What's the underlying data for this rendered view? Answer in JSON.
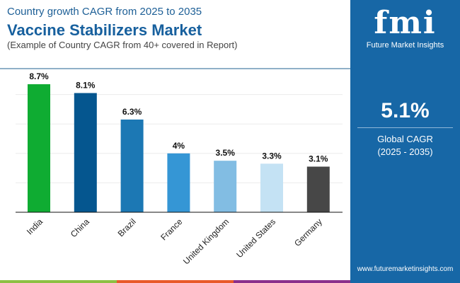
{
  "header": {
    "subtitle": "Country growth CAGR from 2025 to 2035",
    "title": "Vaccine Stabilizers Market",
    "note": "(Example of Country CAGR from 40+ covered in Report)"
  },
  "panel": {
    "brand": "fmi",
    "brand_name": "Future Market Insights",
    "cagr_value": "5.1%",
    "cagr_label": "Global CAGR",
    "cagr_period": "(2025 - 2035)",
    "url": "www.futuremarketinsights.com",
    "color": "#1767a6"
  },
  "chart_data": {
    "type": "bar",
    "categories": [
      "India",
      "China",
      "Brazil",
      "France",
      "United Kingdom",
      "United States",
      "Germany"
    ],
    "values": [
      8.7,
      8.1,
      6.3,
      4,
      3.5,
      3.3,
      3.1
    ],
    "labels": [
      "8.7%",
      "8.1%",
      "6.3%",
      "4%",
      "3.5%",
      "3.3%",
      "3.1%"
    ],
    "colors": [
      "#0fac32",
      "#05568f",
      "#1c78b4",
      "#3596d5",
      "#82bde3",
      "#c4e2f4",
      "#474747"
    ],
    "ylim": [
      0,
      10
    ],
    "grid": true,
    "xlabel": "",
    "ylabel": ""
  }
}
